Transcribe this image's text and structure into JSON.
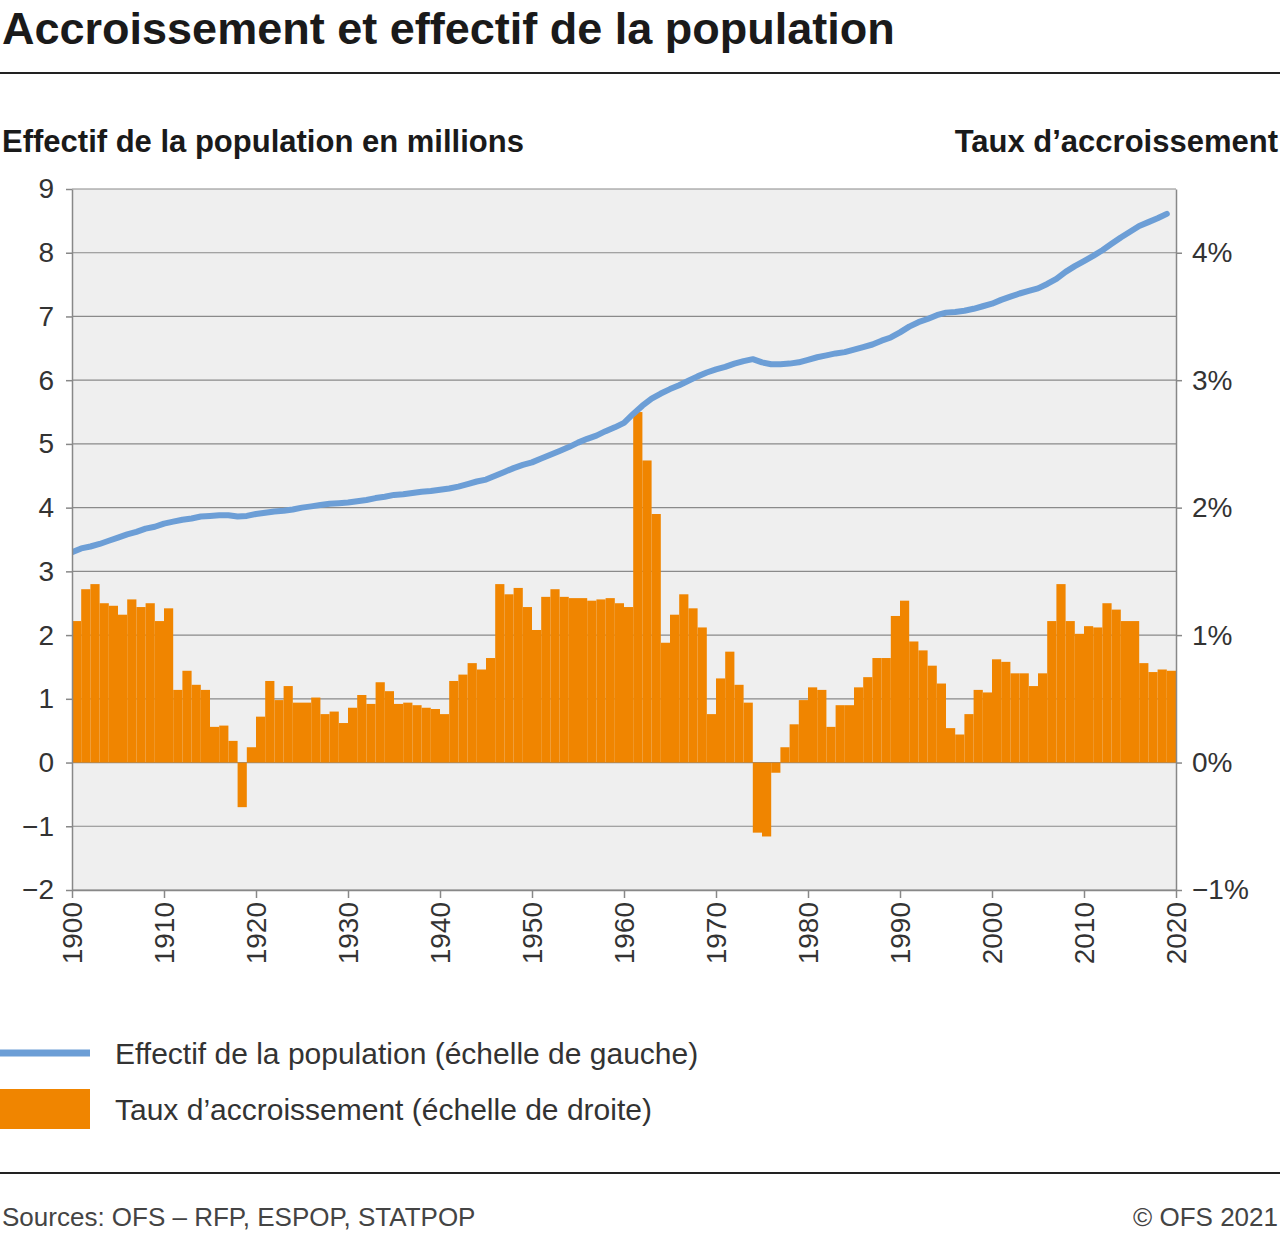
{
  "chart_data": {
    "type": "bar",
    "title": "Accroissement et effectif de la population",
    "y_label": "Effectif de la population en millions",
    "y2_label": "Taux d’accroissement",
    "source": "Sources: OFS – RFP, ESPOP, STATPOP",
    "credit": "© OFS 2021",
    "x": [
      1900,
      1901,
      1902,
      1903,
      1904,
      1905,
      1906,
      1907,
      1908,
      1909,
      1910,
      1911,
      1912,
      1913,
      1914,
      1915,
      1916,
      1917,
      1918,
      1919,
      1920,
      1921,
      1922,
      1923,
      1924,
      1925,
      1926,
      1927,
      1928,
      1929,
      1930,
      1931,
      1932,
      1933,
      1934,
      1935,
      1936,
      1937,
      1938,
      1939,
      1940,
      1941,
      1942,
      1943,
      1944,
      1945,
      1946,
      1947,
      1948,
      1949,
      1950,
      1951,
      1952,
      1953,
      1954,
      1955,
      1956,
      1957,
      1958,
      1959,
      1960,
      1961,
      1962,
      1963,
      1964,
      1965,
      1966,
      1967,
      1968,
      1969,
      1970,
      1971,
      1972,
      1973,
      1974,
      1975,
      1976,
      1977,
      1978,
      1979,
      1980,
      1981,
      1982,
      1983,
      1984,
      1985,
      1986,
      1987,
      1988,
      1989,
      1990,
      1991,
      1992,
      1993,
      1994,
      1995,
      1996,
      1997,
      1998,
      1999,
      2000,
      2001,
      2002,
      2003,
      2004,
      2005,
      2006,
      2007,
      2008,
      2009,
      2010,
      2011,
      2012,
      2013,
      2014,
      2015,
      2016,
      2017,
      2018,
      2019
    ],
    "series": [
      {
        "name": "Taux d’accroissement (échelle de droite)",
        "type": "bar",
        "axis": "y2",
        "color": "#f08500",
        "values": [
          1.11,
          1.36,
          1.4,
          1.25,
          1.23,
          1.16,
          1.28,
          1.22,
          1.25,
          1.11,
          1.21,
          0.57,
          0.72,
          0.61,
          0.57,
          0.28,
          0.29,
          0.17,
          -0.35,
          0.12,
          0.36,
          0.64,
          0.49,
          0.6,
          0.47,
          0.47,
          0.51,
          0.38,
          0.4,
          0.31,
          0.43,
          0.53,
          0.46,
          0.63,
          0.56,
          0.46,
          0.47,
          0.45,
          0.43,
          0.42,
          0.38,
          0.64,
          0.69,
          0.78,
          0.73,
          0.82,
          1.4,
          1.32,
          1.37,
          1.22,
          1.04,
          1.3,
          1.36,
          1.3,
          1.29,
          1.29,
          1.27,
          1.28,
          1.29,
          1.25,
          1.22,
          2.75,
          2.37,
          1.95,
          0.94,
          1.16,
          1.32,
          1.21,
          1.06,
          0.38,
          0.66,
          0.87,
          0.61,
          0.47,
          -0.55,
          -0.58,
          -0.08,
          0.12,
          0.3,
          0.49,
          0.59,
          0.57,
          0.28,
          0.45,
          0.45,
          0.59,
          0.67,
          0.82,
          0.82,
          1.15,
          1.27,
          0.95,
          0.88,
          0.76,
          0.62,
          0.27,
          0.22,
          0.38,
          0.57,
          0.55,
          0.81,
          0.79,
          0.7,
          0.7,
          0.6,
          0.7,
          1.11,
          1.4,
          1.11,
          1.01,
          1.07,
          1.06,
          1.25,
          1.2,
          1.11,
          1.11,
          0.78,
          0.71,
          0.73,
          0.72
        ]
      },
      {
        "name": "Effectif de la population (échelle de gauche)",
        "type": "line",
        "color": "#6c9ed6",
        "values": [
          3.3,
          3.36,
          3.39,
          3.43,
          3.48,
          3.53,
          3.58,
          3.62,
          3.67,
          3.7,
          3.75,
          3.78,
          3.81,
          3.83,
          3.86,
          3.87,
          3.88,
          3.88,
          3.86,
          3.87,
          3.9,
          3.92,
          3.94,
          3.95,
          3.97,
          4.0,
          4.02,
          4.04,
          4.06,
          4.07,
          4.08,
          4.1,
          4.12,
          4.15,
          4.17,
          4.2,
          4.21,
          4.23,
          4.25,
          4.26,
          4.28,
          4.3,
          4.33,
          4.37,
          4.41,
          4.44,
          4.5,
          4.56,
          4.62,
          4.67,
          4.71,
          4.77,
          4.83,
          4.89,
          4.95,
          5.02,
          5.08,
          5.13,
          5.2,
          5.26,
          5.33,
          5.47,
          5.6,
          5.71,
          5.79,
          5.86,
          5.92,
          5.99,
          6.06,
          6.12,
          6.17,
          6.21,
          6.26,
          6.3,
          6.33,
          6.28,
          6.25,
          6.25,
          6.26,
          6.28,
          6.32,
          6.36,
          6.39,
          6.42,
          6.44,
          6.48,
          6.52,
          6.56,
          6.62,
          6.67,
          6.75,
          6.84,
          6.91,
          6.96,
          7.02,
          7.06,
          7.07,
          7.09,
          7.12,
          7.16,
          7.2,
          7.26,
          7.31,
          7.36,
          7.4,
          7.44,
          7.51,
          7.59,
          7.7,
          7.79,
          7.87,
          7.95,
          8.04,
          8.14,
          8.24,
          8.33,
          8.42,
          8.48,
          8.54,
          8.61
        ]
      }
    ],
    "xlim": [
      1900,
      2020
    ],
    "xticks": [
      1900,
      1910,
      1920,
      1930,
      1940,
      1950,
      1960,
      1970,
      1980,
      1990,
      2000,
      2010,
      2020
    ],
    "ylim": [
      -2,
      9
    ],
    "yticks": [
      {
        "value": -2,
        "label": "−2"
      },
      {
        "value": -1,
        "label": "−1"
      },
      0,
      1,
      2,
      3,
      4,
      5,
      6,
      7,
      8,
      9
    ],
    "y2lim": [
      -1,
      4.5
    ],
    "y2ticks": [
      {
        "value": -1,
        "label": "−1%"
      },
      {
        "value": 0,
        "label": "0%"
      },
      {
        "value": 1,
        "label": "1%"
      },
      {
        "value": 2,
        "label": "2%"
      },
      {
        "value": 3,
        "label": "3%"
      },
      {
        "value": 4,
        "label": "4%"
      }
    ],
    "grid": true,
    "legend": "bottom"
  }
}
